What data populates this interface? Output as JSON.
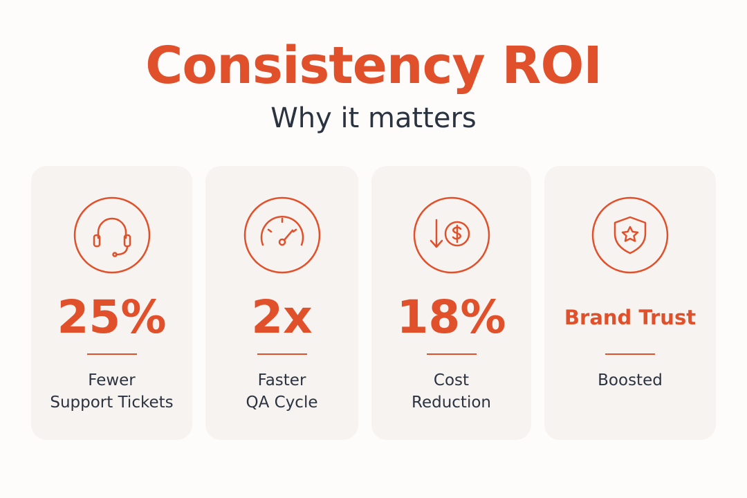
{
  "header": {
    "title": "Consistency ROI",
    "subtitle": "Why it matters"
  },
  "cards": [
    {
      "stat": "25%",
      "label": [
        "Fewer",
        "Support Tickets"
      ]
    },
    {
      "stat": "2x",
      "label": [
        "Faster",
        "QA Cycle"
      ]
    },
    {
      "stat": "18%",
      "label": [
        "Cost",
        "Reduction"
      ]
    },
    {
      "stat": "Brand Trust",
      "label": [
        "Boosted"
      ]
    }
  ]
}
